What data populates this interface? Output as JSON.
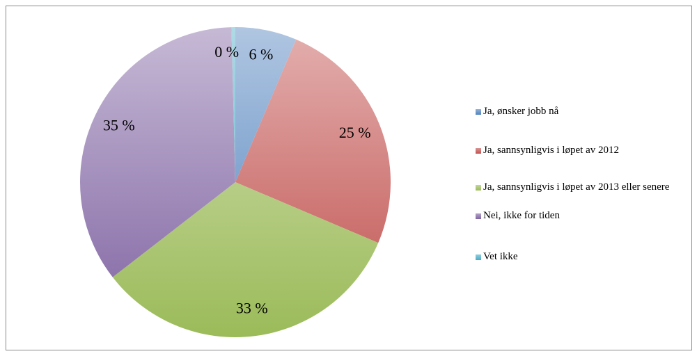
{
  "chart_data": {
    "type": "pie",
    "categories": [
      "Ja, ønsker jobb nå",
      "Ja, sannsynligvis i løpet av 2012",
      "Ja, sannsynligvis i løpet av 2013 eller senere",
      "Nei, ikke for tiden",
      "Vet ikke"
    ],
    "values": [
      6.4,
      25,
      33.1,
      35.1,
      0.4
    ],
    "value_labels": [
      "6 %",
      "25 %",
      "33 %",
      "35 %",
      "0 %"
    ],
    "colors": [
      "#4f81bd",
      "#c0504d",
      "#9bbb59",
      "#8064a2",
      "#4bacc6"
    ],
    "legend": "right"
  }
}
